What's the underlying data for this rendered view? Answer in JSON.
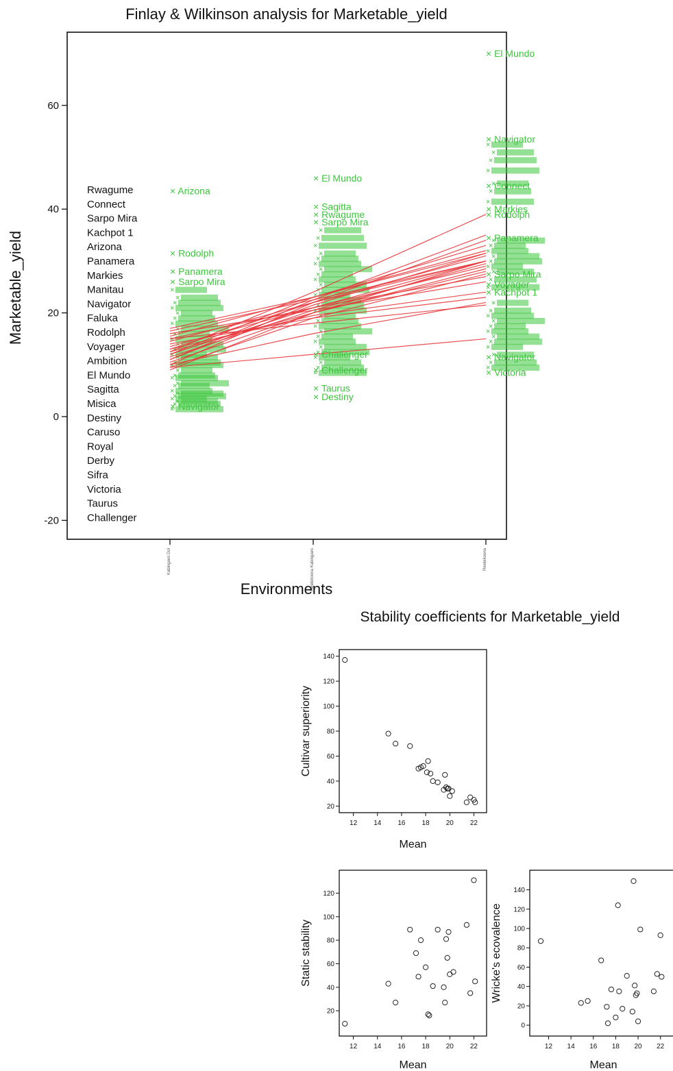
{
  "chart_data": [
    {
      "type": "line",
      "title": "Finlay & Wilkinson analysis for Marketable_yield",
      "xlabel": "Environments",
      "ylabel": "Marketable_yield",
      "ylim": [
        -25,
        73
      ],
      "yticks": [
        -20,
        0,
        20,
        40,
        60
      ],
      "environment_ticks": [
        "Kabingaes Dol",
        "Rwebikoona Kabingaes",
        "Rwebikoona"
      ],
      "environment_effects": [
        12.5,
        20.5,
        29.0
      ],
      "legend": [
        "Rwagume",
        "Connect",
        "Sarpo Mira",
        "Kachpot 1",
        "Arizona",
        "Panamera",
        "Markies",
        "Manitau",
        "Navigator",
        "Faluka",
        "Rodolph",
        "Voyager",
        "Ambition",
        "El Mundo",
        "Sagitta",
        "Misica",
        "Destiny",
        "Caruso",
        "Royal",
        "Derby",
        "Sifra",
        "Victoria",
        "Taurus",
        "Challenger"
      ],
      "legend_placement": "left",
      "colors": {
        "points": "#3cc63c",
        "lines": "#e8383c",
        "text": "#111111"
      },
      "fitted_lines": [
        {
          "y": [
            9.0,
            20.0,
            30.0
          ]
        },
        {
          "y": [
            9.5,
            19.0,
            27.5
          ]
        },
        {
          "y": [
            10.0,
            22.0,
            34.0
          ]
        },
        {
          "y": [
            10.5,
            20.0,
            28.5
          ]
        },
        {
          "y": [
            11.0,
            21.5,
            31.5
          ]
        },
        {
          "y": [
            11.0,
            22.5,
            35.0
          ]
        },
        {
          "y": [
            11.5,
            20.5,
            29.5
          ]
        },
        {
          "y": [
            12.0,
            21.0,
            30.0
          ]
        },
        {
          "y": [
            12.0,
            23.0,
            33.0
          ]
        },
        {
          "y": [
            12.5,
            20.0,
            28.0
          ]
        },
        {
          "y": [
            12.5,
            24.0,
            39.0
          ]
        },
        {
          "y": [
            13.0,
            22.0,
            31.0
          ]
        },
        {
          "y": [
            13.0,
            19.5,
            24.0
          ]
        },
        {
          "y": [
            13.5,
            21.0,
            29.0
          ]
        },
        {
          "y": [
            14.0,
            19.0,
            23.0
          ]
        },
        {
          "y": [
            14.5,
            22.0,
            30.0
          ]
        },
        {
          "y": [
            15.0,
            18.0,
            21.5
          ]
        },
        {
          "y": [
            15.0,
            21.0,
            27.0
          ]
        },
        {
          "y": [
            15.5,
            23.0,
            32.0
          ]
        },
        {
          "y": [
            16.0,
            20.5,
            26.0
          ]
        },
        {
          "y": [
            16.5,
            22.5,
            30.0
          ]
        },
        {
          "y": [
            17.0,
            23.0,
            31.5
          ]
        },
        {
          "y": [
            9.5,
            12.0,
            15.0
          ]
        },
        {
          "y": [
            10.0,
            16.0,
            22.0
          ]
        }
      ],
      "point_labels": [
        {
          "env": 0,
          "y": 43.5,
          "label": "Arizona"
        },
        {
          "env": 0,
          "y": 31.5,
          "label": "Rodolph"
        },
        {
          "env": 0,
          "y": 28.0,
          "label": "Panamera"
        },
        {
          "env": 0,
          "y": 26.0,
          "label": "Sarpo Mira"
        },
        {
          "env": 0,
          "y": 2.0,
          "label": "Navigator"
        },
        {
          "env": 1,
          "y": 46.0,
          "label": "El Mundo"
        },
        {
          "env": 1,
          "y": 40.5,
          "label": "Sagitta"
        },
        {
          "env": 1,
          "y": 39.0,
          "label": "Rwagume"
        },
        {
          "env": 1,
          "y": 37.5,
          "label": "Sarpo Mira"
        },
        {
          "env": 1,
          "y": 12.0,
          "label": "Challenger"
        },
        {
          "env": 1,
          "y": 9.0,
          "label": "Challenger"
        },
        {
          "env": 1,
          "y": 5.5,
          "label": "Taurus"
        },
        {
          "env": 1,
          "y": 3.8,
          "label": "Destiny"
        },
        {
          "env": 2,
          "y": 70.0,
          "label": "El Mundo"
        },
        {
          "env": 2,
          "y": 53.5,
          "label": "Navigator"
        },
        {
          "env": 2,
          "y": 44.5,
          "label": "Connect"
        },
        {
          "env": 2,
          "y": 40.0,
          "label": "Markies"
        },
        {
          "env": 2,
          "y": 39.0,
          "label": "Rodolph"
        },
        {
          "env": 2,
          "y": 34.5,
          "label": "Panamera"
        },
        {
          "env": 2,
          "y": 27.5,
          "label": "Sarpo Mira"
        },
        {
          "env": 2,
          "y": 25.5,
          "label": "Voyager"
        },
        {
          "env": 2,
          "y": 24.0,
          "label": "Kachpot 1"
        },
        {
          "env": 2,
          "y": 11.5,
          "label": "Navigator"
        },
        {
          "env": 2,
          "y": 8.5,
          "label": "Victoria"
        }
      ],
      "points": [
        {
          "env": 0,
          "y": [
            1.5,
            2.5,
            3.0,
            3.5,
            4.0,
            4.5,
            5.0,
            6.0,
            6.5,
            7.5,
            8.0,
            9.0,
            10.0,
            10.5,
            11.5,
            12.0,
            13.0,
            14.0,
            15.0,
            16.0,
            17.0,
            18.0,
            19.0,
            20.0,
            21.0,
            22.0,
            23.0,
            24.5
          ]
        },
        {
          "env": 1,
          "y": [
            8.5,
            9.5,
            10.5,
            11.5,
            12.5,
            13.5,
            14.5,
            15.5,
            16.5,
            17.5,
            18.5,
            19.5,
            20.5,
            21.5,
            22.5,
            23.5,
            24.5,
            25.5,
            26.5,
            27.5,
            28.5,
            29.5,
            30.5,
            31.5,
            33.0,
            34.5,
            36.0
          ]
        },
        {
          "env": 2,
          "y": [
            9.5,
            10.5,
            12.0,
            13.5,
            14.5,
            15.5,
            16.5,
            17.5,
            18.5,
            19.5,
            20.5,
            22.0,
            25.0,
            26.5,
            28.0,
            29.0,
            30.0,
            31.0,
            32.0,
            33.0,
            34.0,
            41.5,
            43.5,
            45.0,
            47.5,
            49.5,
            51.0,
            52.5
          ]
        }
      ]
    },
    {
      "type": "scatter",
      "title": "Stability coefficients for Marketable_yield",
      "panels": [
        {
          "xlabel": "Mean",
          "ylabel": "Cultivar superiority",
          "xlim": [
            11,
            22.6
          ],
          "ylim": [
            18,
            142
          ],
          "xticks": [
            12,
            14,
            16,
            18,
            20,
            22
          ],
          "yticks": [
            20,
            40,
            60,
            80,
            100,
            120,
            140
          ],
          "x": [
            11.3,
            14.9,
            15.5,
            16.7,
            17.4,
            17.6,
            17.8,
            18.1,
            18.2,
            18.4,
            18.6,
            19.0,
            19.5,
            19.6,
            19.7,
            19.8,
            19.9,
            20.0,
            20.2,
            21.4,
            21.7,
            22.0,
            22.1
          ],
          "y": [
            137,
            78,
            70,
            68,
            50,
            51,
            52,
            47,
            56,
            46,
            40,
            39,
            33,
            45,
            35,
            34,
            34,
            28,
            32,
            23,
            27,
            25,
            23
          ]
        },
        {
          "xlabel": "Mean",
          "ylabel": "Static stability",
          "xlim": [
            11,
            22.6
          ],
          "ylim": [
            2,
            136
          ],
          "xticks": [
            12,
            14,
            16,
            18,
            20,
            22
          ],
          "yticks": [
            20,
            40,
            60,
            80,
            100,
            120
          ],
          "x": [
            11.3,
            14.9,
            15.5,
            16.7,
            17.2,
            17.4,
            17.6,
            18.0,
            18.2,
            18.3,
            18.6,
            19.0,
            19.5,
            19.6,
            19.7,
            19.8,
            19.9,
            20.0,
            20.3,
            21.4,
            21.7,
            22.0,
            22.1
          ],
          "y": [
            9,
            43,
            27,
            89,
            69,
            49,
            80,
            57,
            17,
            16,
            41,
            89,
            40,
            27,
            81,
            65,
            87,
            51,
            53,
            93,
            35,
            131,
            45
          ]
        },
        {
          "xlabel": "Mean",
          "ylabel": "Wricke's ecovalence",
          "xlim": [
            10.5,
            23
          ],
          "ylim": [
            -7,
            156
          ],
          "xticks": [
            12,
            14,
            16,
            18,
            20,
            22
          ],
          "yticks": [
            0,
            20,
            40,
            60,
            80,
            100,
            120,
            140
          ],
          "x": [
            11.3,
            14.9,
            15.5,
            16.7,
            17.2,
            17.3,
            17.6,
            18.0,
            18.2,
            18.3,
            18.6,
            19.0,
            19.5,
            19.6,
            19.7,
            19.8,
            19.9,
            20.0,
            20.2,
            21.4,
            21.7,
            22.0,
            22.1
          ],
          "y": [
            87,
            23,
            25,
            67,
            19,
            2,
            37,
            8,
            124,
            35,
            17,
            51,
            14,
            149,
            41,
            31,
            33,
            4,
            99,
            35,
            53,
            93,
            50
          ]
        }
      ]
    }
  ]
}
